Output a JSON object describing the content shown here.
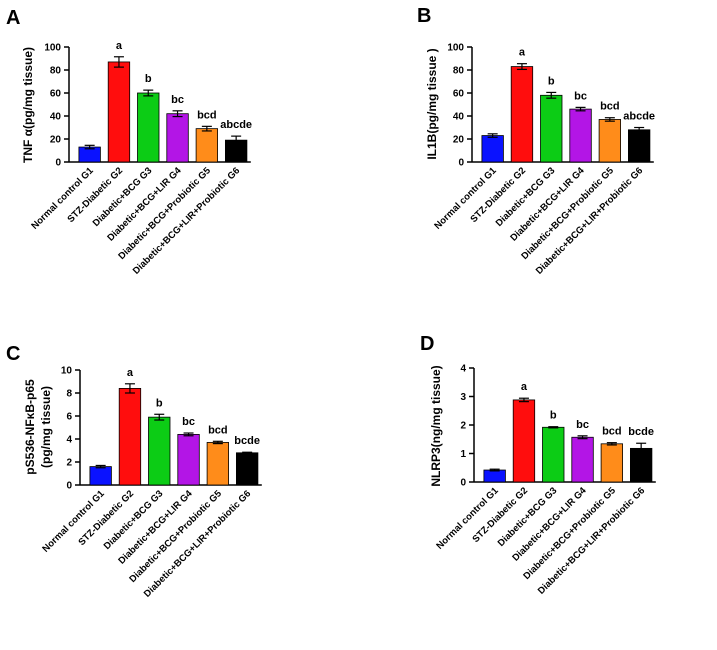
{
  "colors": [
    "#0a12ff",
    "#ff0d0d",
    "#0ccc15",
    "#b315e6",
    "#ff8c1a",
    "#000000"
  ],
  "chart_data": [
    {
      "panel": "A",
      "type": "bar",
      "ylabel": "TNF α(pg/mg tissue)",
      "ylabel_lines": [],
      "ylim": [
        0,
        100
      ],
      "ticks": [
        0,
        20,
        40,
        60,
        80,
        100
      ],
      "categories": [
        "Normal control G1",
        "STZ-Diabetic G2",
        "Diabetic+BCG G3",
        "Diabetic+BCG+LIR G4",
        "Diabetic+BCG+Probiotic G5",
        "Diabetic+BCG+LIR+Probiotic G6"
      ],
      "values": [
        13,
        87,
        60,
        42,
        29,
        19
      ],
      "errors": [
        1.5,
        4.5,
        2.5,
        2.5,
        2,
        3.5
      ],
      "significance": [
        "",
        "a",
        "b",
        "bc",
        "bcd",
        "abcde"
      ]
    },
    {
      "panel": "B",
      "type": "bar",
      "ylabel": "IL1B(pg/mg tissue )",
      "ylabel_lines": [],
      "ylim": [
        0,
        100
      ],
      "ticks": [
        0,
        20,
        40,
        60,
        80,
        100
      ],
      "categories": [
        "Normal control G1",
        "STZ-Diabetic G2",
        "Diabetic+BCG G3",
        "Diabetic+BCG+LIR G4",
        "Diabetic+BCG+Probiotic G5",
        "Diabetic+BCG+LIR+Probiotic G6"
      ],
      "values": [
        23,
        83,
        58,
        46,
        37,
        28
      ],
      "errors": [
        1.5,
        2.5,
        2.5,
        1.5,
        1.5,
        2
      ],
      "significance": [
        "",
        "a",
        "b",
        "bc",
        "bcd",
        "abcde"
      ]
    },
    {
      "panel": "C",
      "type": "bar",
      "ylabel": "",
      "ylabel_lines": [
        "pS536-NFκB-p65",
        "(pg/mg tissue)"
      ],
      "ylim": [
        0,
        10
      ],
      "ticks": [
        0,
        2,
        4,
        6,
        8,
        10
      ],
      "categories": [
        "Normal control G1",
        "STZ-Diabetic G2",
        "Diabetic+BCG G3",
        "Diabetic+BCG+LIR G4",
        "Diabetic+BCG+Probiotic G5",
        "Diabetic+BCG+LIR+Probiotic G6"
      ],
      "values": [
        1.6,
        8.4,
        5.9,
        4.4,
        3.7,
        2.8
      ],
      "errors": [
        0.1,
        0.4,
        0.25,
        0.12,
        0.1,
        0.05
      ],
      "significance": [
        "",
        "a",
        "b",
        "bc",
        "bcd",
        "bcde"
      ]
    },
    {
      "panel": "D",
      "type": "bar",
      "ylabel": "NLRP3(ng/mg tissue)",
      "ylabel_lines": [],
      "ylim": [
        0,
        4
      ],
      "ticks": [
        0,
        1,
        2,
        3,
        4
      ],
      "categories": [
        "Normal control G1",
        "STZ-Diabetic G2",
        "Diabetic+BCG G3",
        "Diabetic+BCG+LIR G4",
        "Diabetic+BCG+Probiotic G5",
        "Diabetic+BCG+LIR+Probiotic G6"
      ],
      "values": [
        0.42,
        2.88,
        1.92,
        1.57,
        1.34,
        1.18
      ],
      "errors": [
        0.03,
        0.06,
        0.02,
        0.05,
        0.04,
        0.18
      ],
      "significance": [
        "",
        "a",
        "b",
        "bc",
        "bcd",
        "bcde"
      ]
    }
  ]
}
